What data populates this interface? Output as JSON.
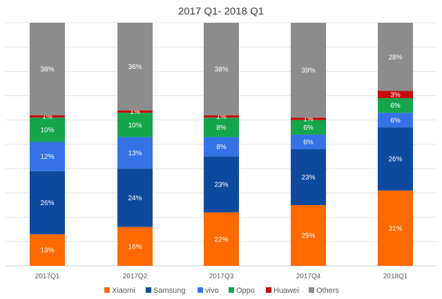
{
  "chart_data": {
    "type": "bar",
    "stacked": true,
    "title": "2017 Q1- 2018 Q1",
    "categories": [
      "2017Q1",
      "2017Q2",
      "2017Q3",
      "2017Q4",
      "2018Q1"
    ],
    "ylim": [
      0,
      100
    ],
    "grid": true,
    "legend_position": "bottom",
    "value_label_suffix": "%",
    "series": [
      {
        "name": "Xiaomi",
        "color": "#FF6A00",
        "values": [
          13,
          16,
          22,
          25,
          31
        ]
      },
      {
        "name": "Samsung",
        "color": "#0D4A9E",
        "values": [
          26,
          24,
          23,
          23,
          26
        ]
      },
      {
        "name": "vivo",
        "color": "#3472E6",
        "values": [
          12,
          13,
          8,
          6,
          6
        ]
      },
      {
        "name": "Oppo",
        "color": "#15A54B",
        "values": [
          10,
          10,
          8,
          6,
          6
        ]
      },
      {
        "name": "Huawei",
        "color": "#C40C0C",
        "values": [
          1,
          1,
          1,
          1,
          3
        ]
      },
      {
        "name": "Others",
        "color": "#8C8C8C",
        "values": [
          38,
          36,
          38,
          39,
          28
        ]
      }
    ]
  }
}
